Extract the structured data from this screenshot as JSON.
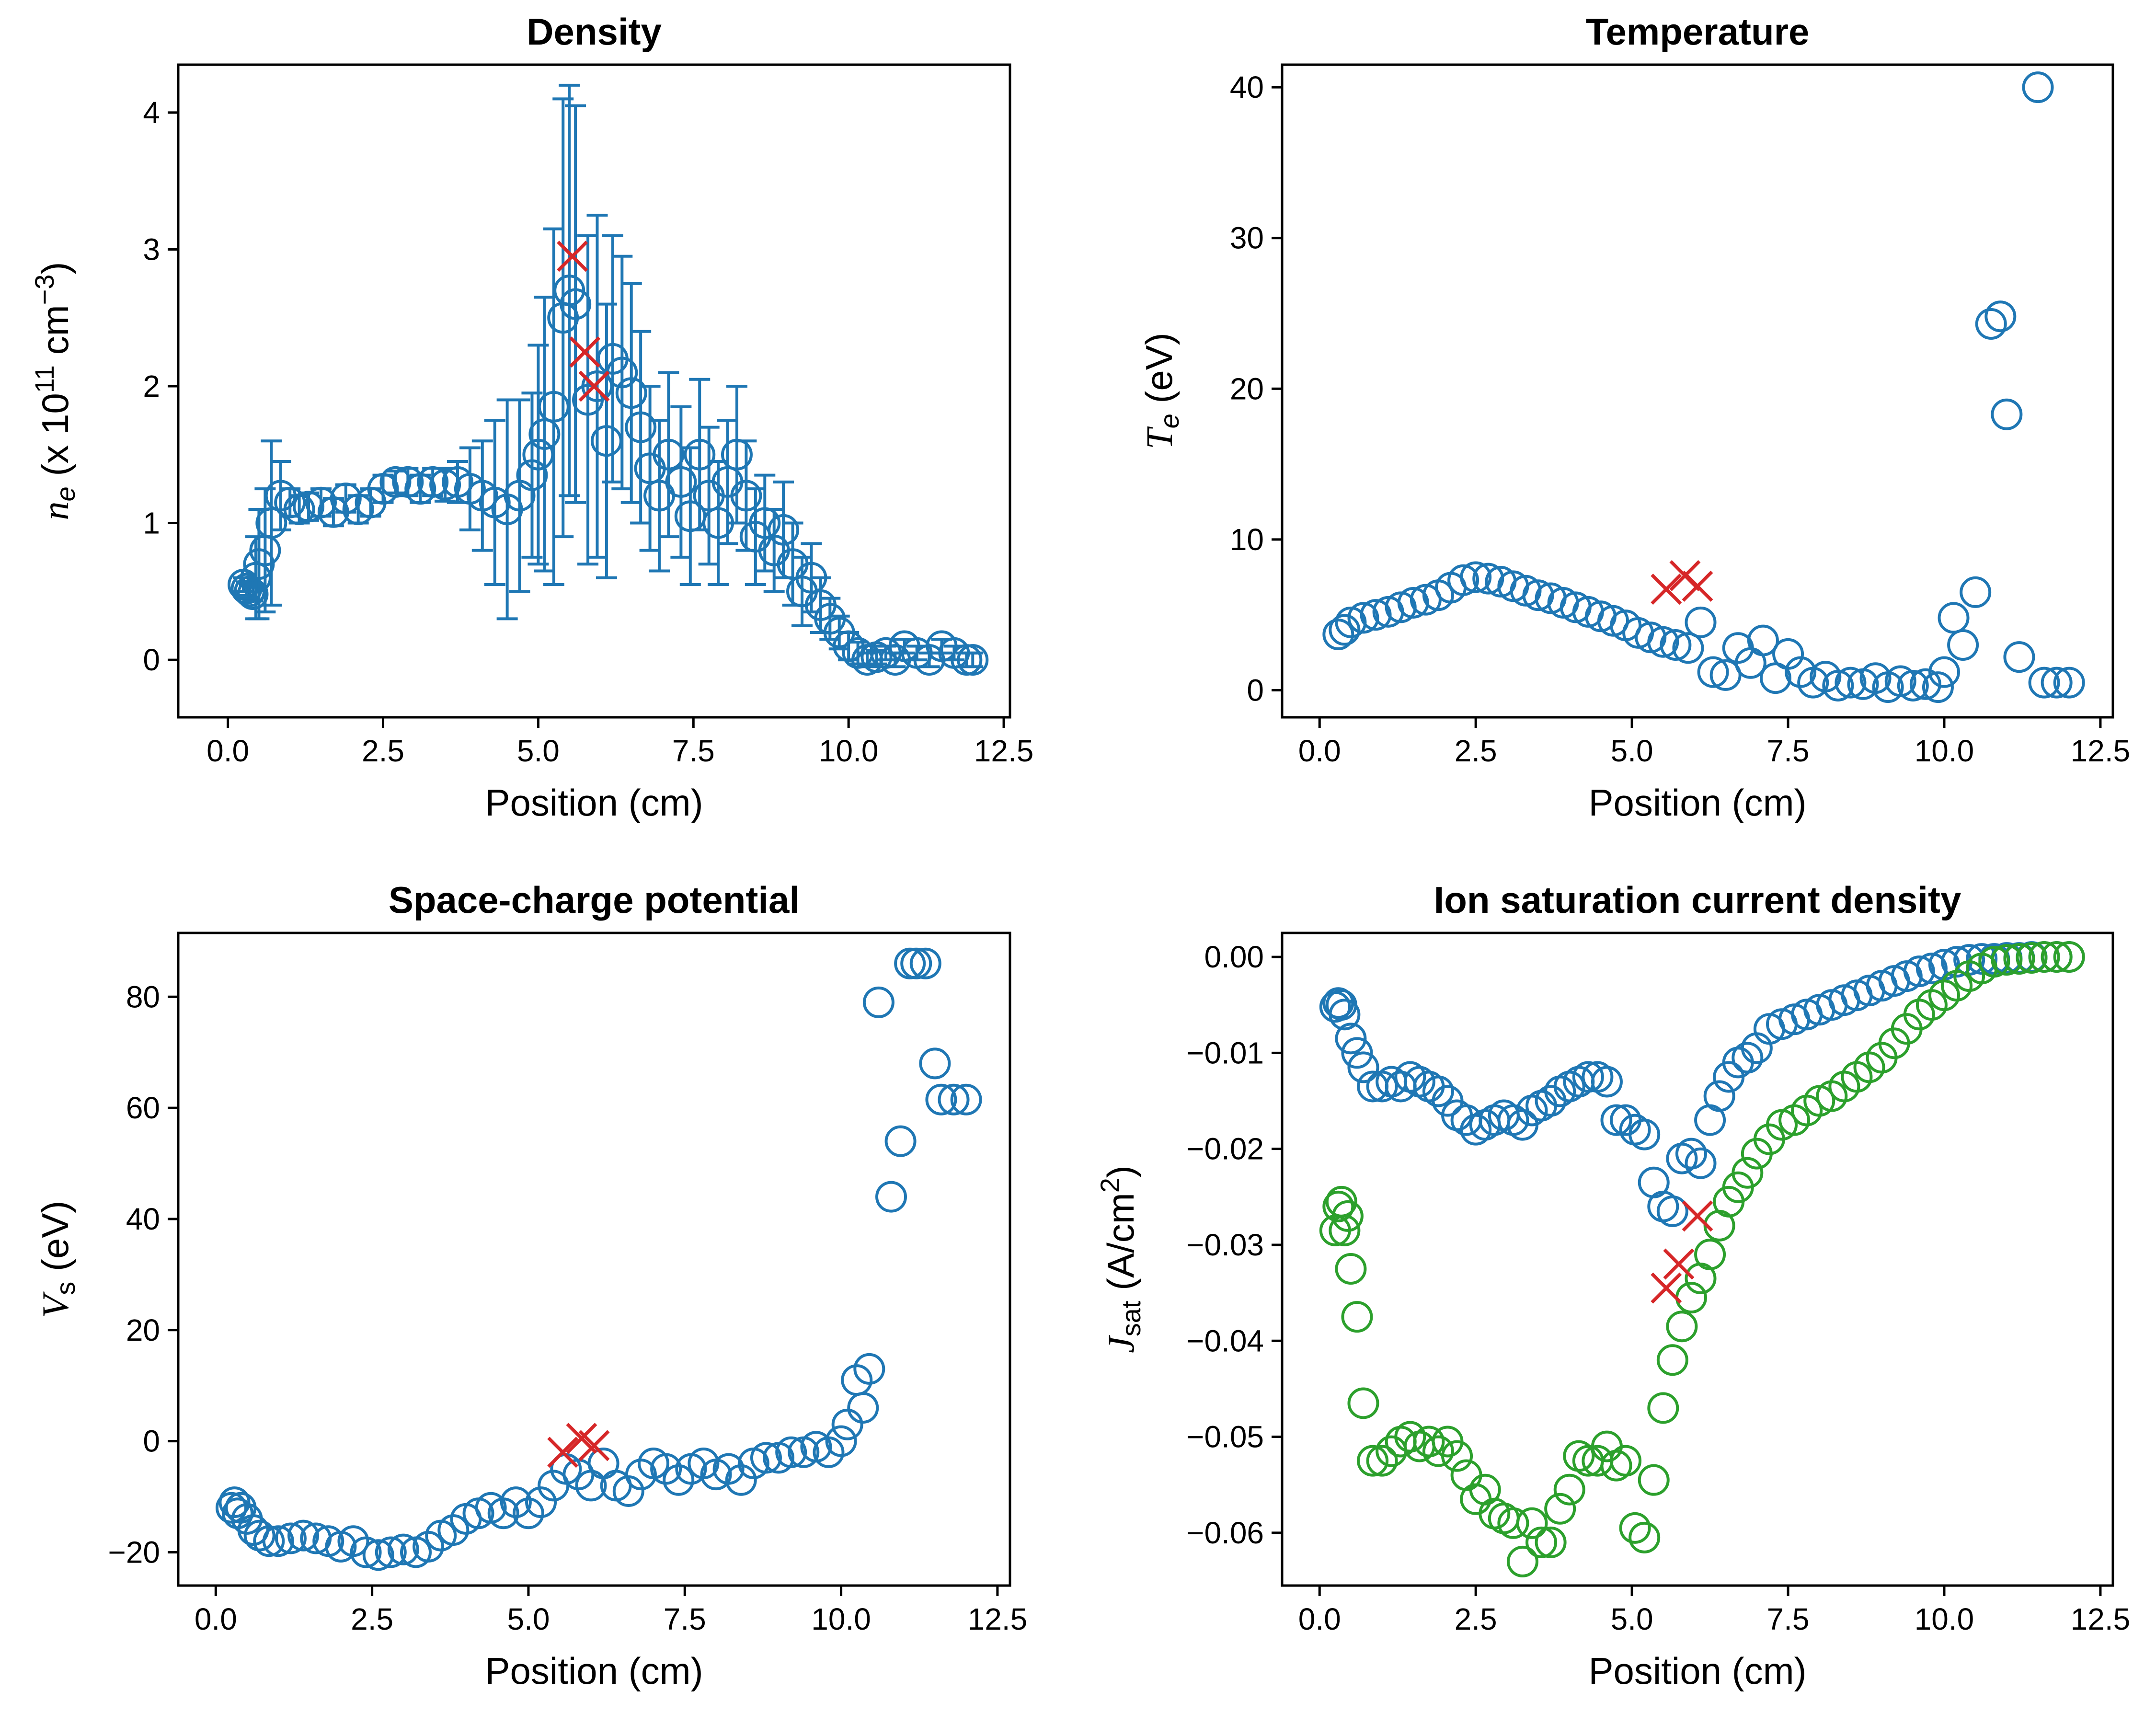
{
  "colors": {
    "blue": "#1f77b4",
    "green": "#2ca02c",
    "red": "#d62728"
  },
  "chart_data": [
    {
      "type": "scatter",
      "title": "Density",
      "xlabel": "Position (cm)",
      "ylabel_symbol": "n",
      "ylabel_sub": "e",
      "ylabel_pre": " (x 10",
      "ylabel_sup": "11",
      "ylabel_post": " cm",
      "ylabel_sup2": "−3",
      "ylabel_end": ")",
      "xlim": [
        -0.8,
        12.6
      ],
      "ylim": [
        -0.42,
        4.35
      ],
      "xticks": [
        0.0,
        2.5,
        5.0,
        7.5,
        10.0,
        12.5
      ],
      "xtick_labels": [
        "0.0",
        "2.5",
        "5.0",
        "7.5",
        "10.0",
        "12.5"
      ],
      "yticks": [
        0,
        1,
        2,
        3,
        4
      ],
      "ytick_labels": [
        "0",
        "1",
        "2",
        "3",
        "4"
      ],
      "series": [
        {
          "color": "blue",
          "marker": "circle",
          "errorbars": true,
          "x": [
            0.25,
            0.3,
            0.35,
            0.4,
            0.45,
            0.5,
            0.6,
            0.7,
            0.85,
            1.0,
            1.15,
            1.3,
            1.5,
            1.7,
            1.9,
            2.1,
            2.3,
            2.5,
            2.7,
            2.9,
            3.1,
            3.3,
            3.5,
            3.7,
            3.9,
            4.1,
            4.3,
            4.5,
            4.7,
            4.9,
            5.0,
            5.1,
            5.25,
            5.4,
            5.5,
            5.6,
            5.8,
            5.95,
            6.1,
            6.2,
            6.35,
            6.5,
            6.65,
            6.8,
            6.95,
            7.1,
            7.3,
            7.45,
            7.6,
            7.75,
            7.9,
            8.05,
            8.2,
            8.35,
            8.5,
            8.65,
            8.8,
            8.95,
            9.1,
            9.25,
            9.4,
            9.55,
            9.7,
            9.85,
            10.0,
            10.15,
            10.3,
            10.45,
            10.6,
            10.75,
            10.9,
            11.1,
            11.3,
            11.5,
            11.7,
            11.9,
            12.0
          ],
          "y": [
            0.55,
            0.52,
            0.5,
            0.48,
            0.6,
            0.7,
            0.8,
            1.0,
            1.2,
            1.15,
            1.1,
            1.12,
            1.15,
            1.08,
            1.18,
            1.1,
            1.15,
            1.25,
            1.3,
            1.3,
            1.25,
            1.3,
            1.28,
            1.3,
            1.25,
            1.2,
            1.15,
            1.1,
            1.2,
            1.35,
            1.5,
            1.65,
            1.85,
            2.5,
            2.7,
            2.6,
            1.9,
            2.0,
            1.6,
            2.2,
            2.1,
            1.95,
            1.7,
            1.4,
            1.2,
            1.5,
            1.3,
            1.05,
            1.5,
            1.2,
            1.0,
            1.3,
            1.5,
            1.2,
            0.9,
            1.0,
            0.8,
            0.95,
            0.7,
            0.5,
            0.6,
            0.4,
            0.3,
            0.2,
            0.1,
            0.05,
            0.0,
            0.02,
            0.05,
            0.0,
            0.1,
            0.05,
            0.0,
            0.1,
            0.05,
            0.0,
            0.0
          ],
          "yerr": [
            0.05,
            0.05,
            0.05,
            0.05,
            0.3,
            0.4,
            0.45,
            0.6,
            0.25,
            0.1,
            0.1,
            0.1,
            0.1,
            0.1,
            0.1,
            0.1,
            0.1,
            0.1,
            0.08,
            0.1,
            0.1,
            0.1,
            0.12,
            0.15,
            0.3,
            0.4,
            0.6,
            0.8,
            0.7,
            0.6,
            0.8,
            1.0,
            1.3,
            1.6,
            1.5,
            1.45,
            1.2,
            1.25,
            1.0,
            0.9,
            0.85,
            0.8,
            0.7,
            0.6,
            0.55,
            0.6,
            0.55,
            0.5,
            0.55,
            0.5,
            0.45,
            0.45,
            0.5,
            0.4,
            0.35,
            0.35,
            0.3,
            0.35,
            0.3,
            0.25,
            0.25,
            0.2,
            0.15,
            0.12,
            0.1,
            0.08,
            0.05,
            0.05,
            0.05,
            0.05,
            0.05,
            0.05,
            0.05,
            0.05,
            0.05,
            0.05,
            0.05
          ]
        },
        {
          "color": "red",
          "marker": "x",
          "x": [
            5.55,
            5.75,
            5.9
          ],
          "y": [
            2.95,
            2.25,
            2.0
          ]
        }
      ]
    },
    {
      "type": "scatter",
      "title": "Temperature",
      "xlabel": "Position (cm)",
      "ylabel_symbol": "T",
      "ylabel_sub": "e",
      "ylabel_pre": " (eV)",
      "xlim": [
        -0.6,
        12.7
      ],
      "ylim": [
        -1.8,
        41.5
      ],
      "xticks": [
        0.0,
        2.5,
        5.0,
        7.5,
        10.0,
        12.5
      ],
      "xtick_labels": [
        "0.0",
        "2.5",
        "5.0",
        "7.5",
        "10.0",
        "12.5"
      ],
      "yticks": [
        0,
        10,
        20,
        30,
        40
      ],
      "ytick_labels": [
        "0",
        "10",
        "20",
        "30",
        "40"
      ],
      "series": [
        {
          "color": "blue",
          "marker": "circle",
          "x": [
            0.3,
            0.4,
            0.5,
            0.7,
            0.9,
            1.1,
            1.3,
            1.5,
            1.7,
            1.9,
            2.1,
            2.3,
            2.5,
            2.7,
            2.9,
            3.1,
            3.3,
            3.5,
            3.7,
            3.9,
            4.1,
            4.3,
            4.5,
            4.7,
            4.9,
            5.1,
            5.3,
            5.5,
            5.7,
            5.9,
            6.1,
            6.3,
            6.5,
            6.7,
            6.9,
            7.1,
            7.3,
            7.5,
            7.7,
            7.9,
            8.1,
            8.3,
            8.5,
            8.7,
            8.9,
            9.1,
            9.3,
            9.5,
            9.7,
            9.9,
            10.0,
            10.15,
            10.3,
            10.5,
            10.75,
            10.9,
            11.0,
            11.5,
            11.2,
            11.6,
            11.8,
            12.0
          ],
          "y": [
            3.7,
            4.0,
            4.5,
            4.8,
            5.0,
            5.2,
            5.5,
            5.8,
            6.0,
            6.3,
            6.8,
            7.3,
            7.5,
            7.4,
            7.2,
            6.9,
            6.6,
            6.3,
            6.1,
            5.8,
            5.5,
            5.2,
            4.9,
            4.6,
            4.3,
            3.8,
            3.5,
            3.2,
            3.0,
            2.8,
            4.5,
            1.2,
            1.0,
            2.8,
            1.8,
            3.3,
            0.8,
            2.4,
            1.2,
            0.5,
            0.9,
            0.3,
            0.5,
            0.4,
            0.8,
            0.2,
            0.6,
            0.3,
            0.4,
            0.2,
            1.2,
            4.8,
            3.0,
            6.5,
            24.3,
            24.8,
            18.3,
            40.0,
            2.2,
            0.5,
            0.5,
            0.5
          ]
        },
        {
          "color": "red",
          "marker": "x",
          "x": [
            5.55,
            5.85,
            6.05
          ],
          "y": [
            6.7,
            7.6,
            6.9
          ]
        }
      ]
    },
    {
      "type": "scatter",
      "title": "Space-charge potential",
      "xlabel": "Position (cm)",
      "ylabel_symbol": "V",
      "ylabel_sub": "s",
      "ylabel_pre": " (eV)",
      "xlim": [
        -0.6,
        12.7
      ],
      "ylim": [
        -26,
        91.5
      ],
      "xticks": [
        0.0,
        2.5,
        5.0,
        7.5,
        10.0,
        12.5
      ],
      "xtick_labels": [
        "0.0",
        "2.5",
        "5.0",
        "7.5",
        "10.0",
        "12.5"
      ],
      "yticks": [
        -20,
        0,
        20,
        40,
        60,
        80
      ],
      "ytick_labels": [
        "−20",
        "0",
        "20",
        "40",
        "60",
        "80"
      ],
      "series": [
        {
          "color": "blue",
          "marker": "circle",
          "x": [
            0.25,
            0.3,
            0.35,
            0.4,
            0.5,
            0.6,
            0.7,
            0.85,
            1.0,
            1.2,
            1.4,
            1.6,
            1.8,
            2.0,
            2.2,
            2.4,
            2.6,
            2.8,
            3.0,
            3.2,
            3.4,
            3.6,
            3.8,
            4.0,
            4.2,
            4.4,
            4.6,
            4.8,
            5.0,
            5.2,
            5.4,
            5.6,
            5.8,
            6.0,
            6.2,
            6.4,
            6.6,
            6.8,
            7.0,
            7.2,
            7.4,
            7.6,
            7.8,
            8.0,
            8.2,
            8.4,
            8.6,
            8.8,
            9.0,
            9.2,
            9.4,
            9.6,
            9.8,
            10.0,
            10.1,
            10.25,
            10.35,
            10.45,
            10.6,
            10.8,
            10.95,
            11.1,
            11.2,
            11.35,
            11.5,
            11.6,
            11.8,
            12.0
          ],
          "y": [
            -12,
            -11,
            -13,
            -12,
            -14,
            -16,
            -17,
            -18,
            -18,
            -17.5,
            -17,
            -17.5,
            -18,
            -19,
            -18,
            -20,
            -20.5,
            -20,
            -19.5,
            -20,
            -19,
            -17,
            -16,
            -14,
            -13,
            -12,
            -13,
            -11,
            -13,
            -11,
            -8,
            -5,
            -6,
            -8,
            -4,
            -8,
            -9,
            -6,
            -4,
            -5,
            -7,
            -5,
            -4,
            -6,
            -5,
            -7,
            -4,
            -3,
            -3,
            -2,
            -2,
            -1,
            -2,
            0,
            3,
            11,
            6,
            13,
            79,
            44,
            54,
            86,
            86,
            86,
            68,
            61.5,
            61.5,
            61.5
          ]
        },
        {
          "color": "red",
          "marker": "x",
          "x": [
            5.55,
            5.85,
            6.05
          ],
          "y": [
            -2.0,
            0.5,
            -0.8
          ]
        }
      ]
    },
    {
      "type": "scatter",
      "title": "Ion saturation current density",
      "xlabel": "Position (cm)",
      "ylabel_symbol": "J",
      "ylabel_sub": "sat",
      "ylabel_pre": " (A/cm",
      "ylabel_sup": "2",
      "ylabel_end": ")",
      "xlim": [
        -0.6,
        12.7
      ],
      "ylim": [
        -0.0655,
        0.0025
      ],
      "xticks": [
        0.0,
        2.5,
        5.0,
        7.5,
        10.0,
        12.5
      ],
      "xtick_labels": [
        "0.0",
        "2.5",
        "5.0",
        "7.5",
        "10.0",
        "12.5"
      ],
      "yticks": [
        0.0,
        -0.01,
        -0.02,
        -0.03,
        -0.04,
        -0.05,
        -0.06
      ],
      "ytick_labels": [
        "0.00",
        "−0.01",
        "−0.02",
        "−0.03",
        "−0.04",
        "−0.05",
        "−0.06"
      ],
      "series": [
        {
          "color": "blue",
          "marker": "circle",
          "x": [
            0.25,
            0.3,
            0.35,
            0.4,
            0.5,
            0.6,
            0.7,
            0.85,
            1.0,
            1.15,
            1.3,
            1.45,
            1.6,
            1.75,
            1.9,
            2.05,
            2.2,
            2.35,
            2.5,
            2.65,
            2.8,
            2.95,
            3.1,
            3.25,
            3.4,
            3.55,
            3.7,
            3.85,
            4.0,
            4.15,
            4.3,
            4.45,
            4.6,
            4.75,
            4.9,
            5.05,
            5.2,
            5.35,
            5.5,
            5.65,
            5.8,
            5.95,
            6.1,
            6.25,
            6.4,
            6.55,
            6.7,
            6.85,
            7.0,
            7.2,
            7.4,
            7.6,
            7.8,
            8.0,
            8.2,
            8.4,
            8.6,
            8.8,
            9.0,
            9.2,
            9.4,
            9.6,
            9.8,
            10.0,
            10.2,
            10.4,
            10.6,
            10.8,
            11.0,
            11.2,
            11.4,
            11.6,
            11.8,
            12.0
          ],
          "y": [
            -0.0052,
            -0.0048,
            -0.005,
            -0.006,
            -0.0085,
            -0.01,
            -0.0115,
            -0.0135,
            -0.0135,
            -0.013,
            -0.0135,
            -0.0125,
            -0.013,
            -0.0135,
            -0.014,
            -0.015,
            -0.0165,
            -0.017,
            -0.018,
            -0.0175,
            -0.017,
            -0.0165,
            -0.017,
            -0.0175,
            -0.016,
            -0.0155,
            -0.015,
            -0.014,
            -0.0135,
            -0.013,
            -0.0125,
            -0.0125,
            -0.013,
            -0.017,
            -0.017,
            -0.018,
            -0.0185,
            -0.0235,
            -0.026,
            -0.0265,
            -0.021,
            -0.0205,
            -0.0215,
            -0.017,
            -0.0145,
            -0.0125,
            -0.011,
            -0.0105,
            -0.0095,
            -0.0075,
            -0.007,
            -0.0065,
            -0.006,
            -0.0055,
            -0.005,
            -0.0045,
            -0.004,
            -0.0035,
            -0.003,
            -0.0025,
            -0.002,
            -0.0015,
            -0.0012,
            -0.0008,
            -0.0005,
            -0.0003,
            -0.0002,
            -0.0002,
            -0.0001,
            -0.0001,
            0.0,
            0.0,
            0.0,
            0.0
          ]
        },
        {
          "color": "green",
          "marker": "circle",
          "x": [
            0.25,
            0.3,
            0.35,
            0.4,
            0.45,
            0.5,
            0.6,
            0.7,
            0.85,
            1.0,
            1.15,
            1.3,
            1.45,
            1.6,
            1.75,
            1.9,
            2.05,
            2.2,
            2.35,
            2.5,
            2.65,
            2.8,
            2.95,
            3.1,
            3.25,
            3.4,
            3.55,
            3.7,
            3.85,
            4.0,
            4.15,
            4.3,
            4.45,
            4.6,
            4.75,
            4.9,
            5.05,
            5.2,
            5.35,
            5.5,
            5.65,
            5.8,
            5.95,
            6.1,
            6.25,
            6.4,
            6.55,
            6.7,
            6.85,
            7.0,
            7.2,
            7.4,
            7.6,
            7.8,
            8.0,
            8.2,
            8.4,
            8.6,
            8.8,
            9.0,
            9.2,
            9.4,
            9.6,
            9.8,
            10.0,
            10.2,
            10.4,
            10.6,
            10.8,
            11.0,
            11.2,
            11.4,
            11.6,
            11.8,
            12.0
          ],
          "y": [
            -0.0285,
            -0.026,
            -0.0255,
            -0.0285,
            -0.027,
            -0.0325,
            -0.0375,
            -0.0465,
            -0.0525,
            -0.0525,
            -0.0515,
            -0.0505,
            -0.05,
            -0.051,
            -0.0505,
            -0.0515,
            -0.0505,
            -0.052,
            -0.054,
            -0.0565,
            -0.0555,
            -0.058,
            -0.0585,
            -0.059,
            -0.063,
            -0.059,
            -0.061,
            -0.061,
            -0.0575,
            -0.0555,
            -0.052,
            -0.0525,
            -0.0525,
            -0.051,
            -0.053,
            -0.0525,
            -0.0595,
            -0.0605,
            -0.0545,
            -0.047,
            -0.042,
            -0.0385,
            -0.0355,
            -0.0335,
            -0.031,
            -0.028,
            -0.0255,
            -0.024,
            -0.0225,
            -0.0205,
            -0.019,
            -0.0175,
            -0.017,
            -0.016,
            -0.015,
            -0.0145,
            -0.0135,
            -0.0125,
            -0.0115,
            -0.0105,
            -0.009,
            -0.0075,
            -0.006,
            -0.005,
            -0.004,
            -0.003,
            -0.002,
            -0.0012,
            -0.0005,
            -0.0003,
            -0.0002,
            -0.0001,
            0.0,
            0.0,
            0.0
          ]
        },
        {
          "color": "red",
          "marker": "x",
          "x": [
            5.55,
            5.75,
            6.05
          ],
          "y": [
            -0.0345,
            -0.032,
            -0.027
          ]
        }
      ]
    }
  ]
}
